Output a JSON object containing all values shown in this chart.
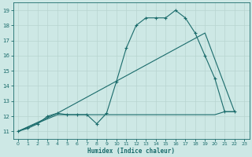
{
  "xlabel": "Humidex (Indice chaleur)",
  "xlim": [
    -0.5,
    23.5
  ],
  "ylim": [
    10.5,
    19.5
  ],
  "xticks": [
    0,
    1,
    2,
    3,
    4,
    5,
    6,
    7,
    8,
    9,
    10,
    11,
    12,
    13,
    14,
    15,
    16,
    17,
    18,
    19,
    20,
    21,
    22,
    23
  ],
  "yticks": [
    11,
    12,
    13,
    14,
    15,
    16,
    17,
    18,
    19
  ],
  "background_color": "#cde8e5",
  "line_color": "#1a6b6b",
  "grid_color": "#b8d4d0",
  "line1_x": [
    0,
    1,
    2,
    3,
    4,
    5,
    6,
    7,
    8,
    9,
    10,
    11,
    12,
    13,
    14,
    15,
    16,
    17,
    18,
    19,
    20,
    21,
    22
  ],
  "line1_y": [
    11.0,
    11.2,
    11.5,
    12.0,
    12.2,
    12.1,
    12.1,
    12.1,
    11.5,
    12.2,
    14.3,
    16.5,
    18.0,
    18.5,
    18.5,
    18.5,
    19.0,
    18.5,
    17.5,
    16.0,
    14.5,
    12.3,
    12.3
  ],
  "line2_x": [
    0,
    4,
    5,
    6,
    7,
    8,
    9,
    10,
    11,
    12,
    13,
    14,
    15,
    16,
    17,
    18,
    19,
    20,
    21,
    22
  ],
  "line2_y": [
    11.0,
    12.1,
    12.1,
    12.1,
    12.1,
    12.1,
    12.1,
    12.1,
    12.1,
    12.1,
    12.1,
    12.1,
    12.1,
    12.1,
    12.1,
    12.1,
    12.1,
    12.1,
    12.3,
    12.3
  ],
  "line3_x": [
    0,
    4,
    19,
    22
  ],
  "line3_y": [
    11.0,
    12.2,
    17.5,
    12.3
  ]
}
